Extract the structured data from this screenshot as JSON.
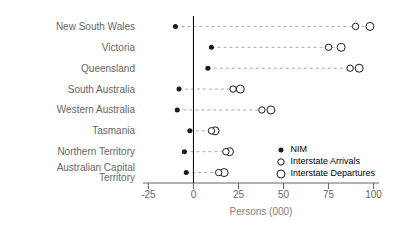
{
  "chart_data": {
    "type": "dot",
    "categories": [
      "New South Wales",
      "Victoria",
      "Queensland",
      "South Australia",
      "Western Australia",
      "Tasmania",
      "Northern Territory",
      "Australian Capital Territory"
    ],
    "series": [
      {
        "name": "NIM",
        "color": "#1a1a1a",
        "marker": "dot",
        "values": [
          -10,
          10,
          8,
          -8,
          -9,
          -2,
          -5,
          -4
        ]
      },
      {
        "name": "Interstate Arrivals",
        "color": "#1a1a1a",
        "marker": "circle",
        "values": [
          90,
          75,
          87,
          22,
          38,
          10,
          18,
          14
        ]
      },
      {
        "name": "Interstate Departures",
        "color": "#1a1a1a",
        "marker": "circle",
        "values": [
          98,
          82,
          92,
          26,
          43,
          12,
          20,
          17
        ]
      }
    ],
    "xlabel": "Persons (000)",
    "xlim": [
      -28,
      103
    ],
    "xticks": [
      -25,
      0,
      25,
      50,
      75,
      100
    ],
    "grid": false,
    "legend": "lower right"
  }
}
